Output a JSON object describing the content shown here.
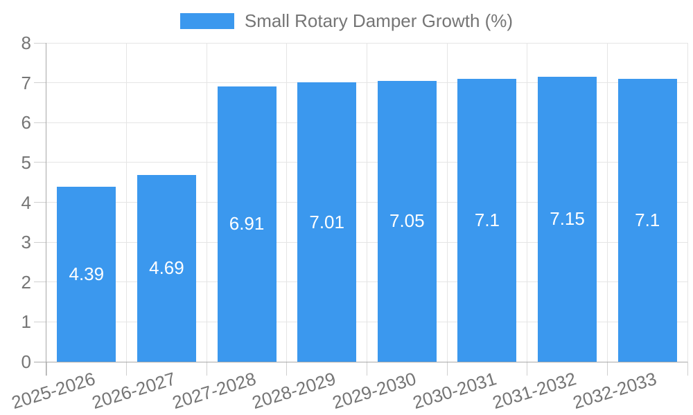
{
  "chart_data": {
    "type": "bar",
    "title": "Small Rotary Damper Growth (%)",
    "legend": {
      "label": "Small Rotary Damper Growth (%)",
      "position": "top"
    },
    "categories": [
      "2025-2026",
      "2026-2027",
      "2027-2028",
      "2028-2029",
      "2029-2030",
      "2030-2031",
      "2031-2032",
      "2032-2033"
    ],
    "series": [
      {
        "name": "Small Rotary Damper Growth (%)",
        "values": [
          4.39,
          4.69,
          6.91,
          7.01,
          7.05,
          7.1,
          7.15,
          7.1
        ]
      }
    ],
    "xlabel": "",
    "ylabel": "",
    "ylim": [
      0,
      8
    ],
    "y_ticks": [
      0,
      1,
      2,
      3,
      4,
      5,
      6,
      7,
      8
    ],
    "grid": true,
    "x_label_rotation_deg": -17,
    "colors": {
      "bar": "#3B98EE",
      "bar_label": "#FFFFFF",
      "axis_text": "#757575",
      "grid_line": "#E5E5E5",
      "axis_line": "#A8A8A8",
      "tick_mark": "#CFCFCF",
      "background": "#FFFFFF"
    }
  }
}
